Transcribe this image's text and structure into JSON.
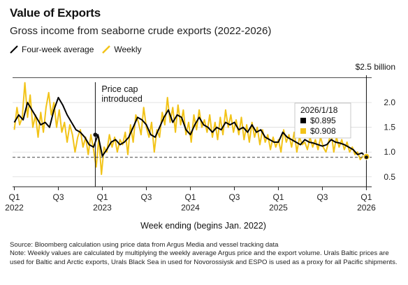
{
  "title": "Value of Exports",
  "subtitle": "Gross income from seaborne crude exports (2022-2026)",
  "legend": {
    "avg_label": "Four-week average",
    "weekly_label": "Weekly"
  },
  "colors": {
    "avg": "#000000",
    "weekly": "#f2c318",
    "grid": "#d9d9d9",
    "reference": "#444444"
  },
  "source": "Source: Bloomberg calculation using price data from Argus Media and vessel tracking data",
  "note": "Note: Weekly values are calculated by multiplying the weekly average Argus price and the export volume. Urals Baltic prices are used for Baltic and Arctic exports, Urals Black Sea in used for Novorossiysk and ESPO is used as a proxy for all Pacific shipments.",
  "chart_data": {
    "type": "line",
    "title": "Gross income from seaborne crude exports (2022-2026)",
    "xlabel": "Week ending (begins Jan. 2022)",
    "ylabel": "$2.5 billion",
    "ylim": [
      0.3,
      2.55
    ],
    "y_ticks": [
      0.5,
      1.0,
      1.5,
      2.0
    ],
    "y_tick_labels": [
      "0.5",
      "1.0",
      "1.5",
      "2.0"
    ],
    "y_top_label": "$2.5 billion",
    "x_ticks": [
      {
        "quarter": "Q1",
        "year": "2022",
        "x": 0
      },
      {
        "quarter": "Q3",
        "year": "",
        "x": 0.5
      },
      {
        "quarter": "Q1",
        "year": "2023",
        "x": 1
      },
      {
        "quarter": "Q3",
        "year": "",
        "x": 1.5
      },
      {
        "quarter": "Q1",
        "year": "2024",
        "x": 2
      },
      {
        "quarter": "Q3",
        "year": "",
        "x": 2.5
      },
      {
        "quarter": "Q1",
        "year": "2025",
        "x": 3
      },
      {
        "quarter": "Q3",
        "year": "",
        "x": 3.5
      },
      {
        "quarter": "Q1",
        "year": "2026",
        "x": 4
      }
    ],
    "x_range": [
      -0.02,
      4.06
    ],
    "grid": true,
    "reference_line": {
      "y": 0.895
    },
    "annotations": [
      {
        "label_line1": "Price cap",
        "label_line2": "introduced",
        "x": 0.92
      },
      {
        "x": 4.0
      }
    ],
    "tooltip": {
      "date": "2026/1/18",
      "avg_value": "$0.895",
      "weekly_value": "$0.908"
    },
    "series": [
      {
        "name": "Four-week average",
        "x": [
          0.0,
          0.05,
          0.1,
          0.15,
          0.2,
          0.25,
          0.3,
          0.35,
          0.4,
          0.45,
          0.5,
          0.55,
          0.6,
          0.65,
          0.7,
          0.75,
          0.8,
          0.85,
          0.9,
          0.95,
          1.0,
          1.05,
          1.1,
          1.15,
          1.2,
          1.25,
          1.3,
          1.35,
          1.4,
          1.45,
          1.5,
          1.55,
          1.6,
          1.65,
          1.7,
          1.75,
          1.8,
          1.85,
          1.9,
          1.95,
          2.0,
          2.05,
          2.1,
          2.15,
          2.2,
          2.25,
          2.3,
          2.35,
          2.4,
          2.45,
          2.5,
          2.55,
          2.6,
          2.65,
          2.7,
          2.75,
          2.8,
          2.85,
          2.9,
          2.95,
          3.0,
          3.05,
          3.1,
          3.15,
          3.2,
          3.25,
          3.3,
          3.35,
          3.4,
          3.45,
          3.5,
          3.55,
          3.6,
          3.65,
          3.7,
          3.75,
          3.8,
          3.85,
          3.9,
          3.95,
          4.0
        ],
        "values": [
          1.6,
          1.75,
          1.65,
          2.0,
          1.85,
          1.7,
          1.55,
          1.6,
          1.5,
          1.85,
          2.1,
          1.95,
          1.75,
          1.6,
          1.45,
          1.4,
          1.3,
          1.15,
          1.1,
          1.35,
          0.92,
          1.05,
          1.2,
          1.25,
          1.15,
          1.2,
          1.3,
          1.5,
          1.7,
          1.65,
          1.55,
          1.35,
          1.3,
          1.5,
          1.7,
          1.85,
          1.6,
          1.75,
          1.7,
          1.45,
          1.35,
          1.55,
          1.7,
          1.55,
          1.5,
          1.4,
          1.5,
          1.45,
          1.6,
          1.55,
          1.6,
          1.45,
          1.5,
          1.4,
          1.55,
          1.4,
          1.45,
          1.3,
          1.25,
          1.2,
          1.2,
          1.4,
          1.3,
          1.25,
          1.2,
          1.15,
          1.25,
          1.2,
          1.18,
          1.15,
          1.12,
          1.15,
          1.25,
          1.2,
          1.18,
          1.15,
          1.1,
          1.05,
          0.95,
          0.98,
          0.895
        ]
      },
      {
        "name": "Weekly",
        "x": [
          0.0,
          0.03,
          0.06,
          0.09,
          0.12,
          0.15,
          0.18,
          0.21,
          0.24,
          0.27,
          0.3,
          0.33,
          0.36,
          0.39,
          0.42,
          0.45,
          0.48,
          0.51,
          0.54,
          0.57,
          0.6,
          0.63,
          0.66,
          0.69,
          0.72,
          0.75,
          0.78,
          0.81,
          0.84,
          0.87,
          0.9,
          0.93,
          0.96,
          0.99,
          1.02,
          1.05,
          1.08,
          1.11,
          1.14,
          1.17,
          1.2,
          1.23,
          1.26,
          1.29,
          1.32,
          1.35,
          1.38,
          1.41,
          1.44,
          1.47,
          1.5,
          1.53,
          1.56,
          1.59,
          1.62,
          1.65,
          1.68,
          1.71,
          1.74,
          1.77,
          1.8,
          1.83,
          1.86,
          1.89,
          1.92,
          1.95,
          1.98,
          2.01,
          2.04,
          2.07,
          2.1,
          2.13,
          2.16,
          2.19,
          2.22,
          2.25,
          2.28,
          2.31,
          2.34,
          2.37,
          2.4,
          2.43,
          2.46,
          2.49,
          2.52,
          2.55,
          2.58,
          2.61,
          2.64,
          2.67,
          2.7,
          2.73,
          2.76,
          2.79,
          2.82,
          2.85,
          2.88,
          2.91,
          2.94,
          2.97,
          3.0,
          3.03,
          3.06,
          3.09,
          3.12,
          3.15,
          3.18,
          3.21,
          3.24,
          3.27,
          3.3,
          3.33,
          3.36,
          3.39,
          3.42,
          3.45,
          3.48,
          3.51,
          3.54,
          3.57,
          3.6,
          3.63,
          3.66,
          3.69,
          3.72,
          3.75,
          3.78,
          3.81,
          3.84,
          3.87,
          3.9,
          3.93,
          3.96,
          4.0
        ],
        "values": [
          1.45,
          1.9,
          1.55,
          1.7,
          2.4,
          1.7,
          2.15,
          1.5,
          1.75,
          1.3,
          1.8,
          1.4,
          1.9,
          2.2,
          1.75,
          2.0,
          1.5,
          1.85,
          1.4,
          1.6,
          1.2,
          1.55,
          1.35,
          1.0,
          1.3,
          1.45,
          1.1,
          1.3,
          0.95,
          1.35,
          1.05,
          0.7,
          1.3,
          0.55,
          1.1,
          1.0,
          1.35,
          1.1,
          1.3,
          1.0,
          1.25,
          1.15,
          1.4,
          0.95,
          1.55,
          1.2,
          1.75,
          1.6,
          1.35,
          1.9,
          1.5,
          1.3,
          1.6,
          1.0,
          1.45,
          1.3,
          1.8,
          1.55,
          2.1,
          1.6,
          1.9,
          1.4,
          1.95,
          1.55,
          1.85,
          1.35,
          1.6,
          1.2,
          1.75,
          1.45,
          1.85,
          1.5,
          1.65,
          1.4,
          1.75,
          1.3,
          1.6,
          1.25,
          1.7,
          1.35,
          1.85,
          1.5,
          1.75,
          1.4,
          1.65,
          1.35,
          1.7,
          1.25,
          1.55,
          1.2,
          1.6,
          1.3,
          1.5,
          1.15,
          1.45,
          1.2,
          1.35,
          1.05,
          1.3,
          1.1,
          1.25,
          1.0,
          1.45,
          1.2,
          1.35,
          1.1,
          1.4,
          1.0,
          1.3,
          1.15,
          1.2,
          1.05,
          1.3,
          1.1,
          1.25,
          1.05,
          1.3,
          1.1,
          1.0,
          1.2,
          1.4,
          1.0,
          1.3,
          1.1,
          1.25,
          1.05,
          1.2,
          1.0,
          1.1,
          0.95,
          1.0,
          0.85,
          0.92,
          0.908
        ]
      }
    ]
  }
}
